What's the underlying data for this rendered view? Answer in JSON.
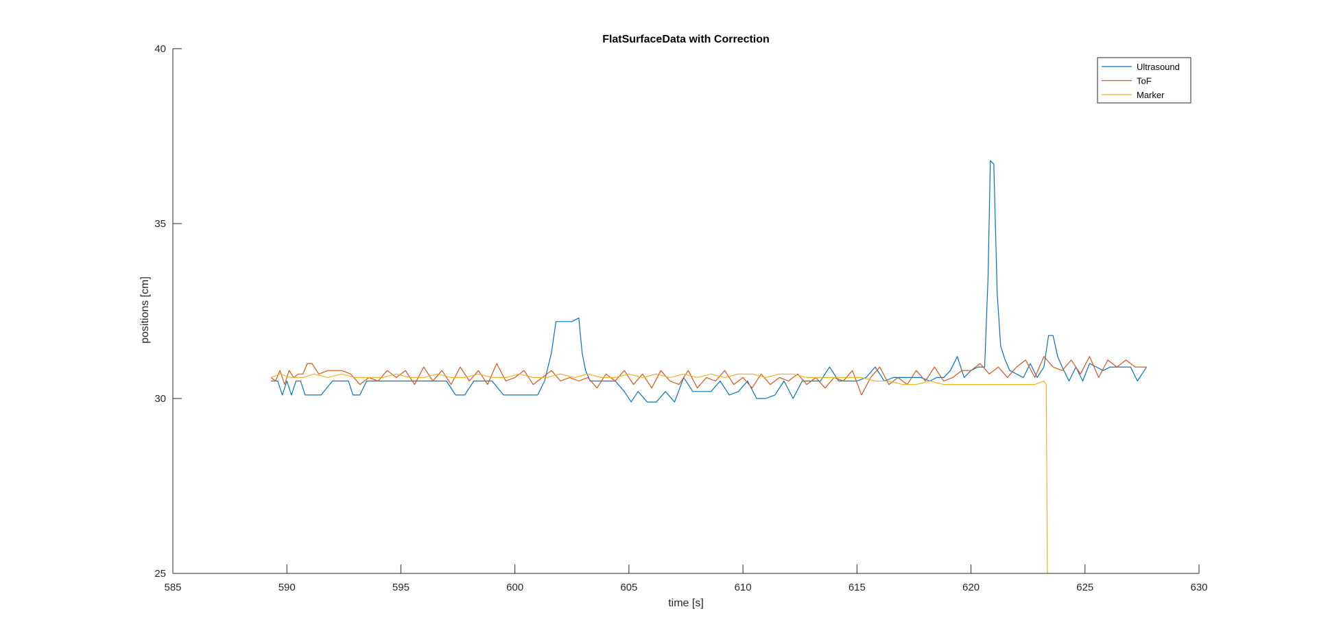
{
  "chart_data": {
    "type": "line",
    "title": "FlatSurfaceData with Correction",
    "xlabel": "time [s]",
    "ylabel": "positions [cm]",
    "xlim": [
      585,
      630
    ],
    "ylim": [
      25,
      40
    ],
    "xticks": [
      585,
      590,
      595,
      600,
      605,
      610,
      615,
      620,
      625,
      630
    ],
    "yticks": [
      25,
      30,
      35,
      40
    ],
    "grid": false,
    "legend_position": "top-right",
    "series": [
      {
        "name": "Ultrasound",
        "color": "#0072BD",
        "x": [
          589.3,
          589.6,
          589.8,
          590.0,
          590.2,
          590.4,
          590.6,
          590.8,
          591.0,
          591.5,
          592.0,
          592.4,
          592.7,
          592.9,
          593.2,
          593.5,
          593.8,
          594.2,
          594.6,
          595.0,
          595.5,
          596.0,
          596.5,
          597.0,
          597.4,
          597.8,
          598.2,
          598.6,
          599.0,
          599.5,
          600.0,
          600.5,
          601.0,
          601.3,
          601.6,
          601.8,
          601.9,
          602.0,
          602.2,
          602.5,
          602.8,
          602.95,
          603.1,
          603.3,
          603.6,
          604.0,
          604.4,
          604.8,
          605.1,
          605.4,
          605.8,
          606.2,
          606.6,
          607.0,
          607.4,
          607.8,
          608.2,
          608.6,
          609.0,
          609.4,
          609.8,
          610.2,
          610.6,
          611.0,
          611.4,
          611.8,
          612.2,
          612.6,
          613.0,
          613.4,
          613.8,
          614.2,
          614.6,
          615.0,
          615.4,
          615.8,
          616.2,
          616.6,
          617.0,
          617.4,
          617.8,
          618.2,
          618.5,
          618.8,
          619.1,
          619.4,
          619.7,
          620.0,
          620.3,
          620.6,
          620.75,
          620.85,
          621.0,
          621.15,
          621.3,
          621.5,
          621.7,
          622.0,
          622.3,
          622.6,
          622.9,
          623.2,
          623.4,
          623.6,
          623.8,
          624.0,
          624.3,
          624.6,
          624.9,
          625.2,
          625.5,
          625.8,
          626.1,
          626.4,
          626.7,
          627.0,
          627.3,
          627.7
        ],
        "y": [
          30.5,
          30.5,
          30.1,
          30.5,
          30.1,
          30.5,
          30.5,
          30.1,
          30.1,
          30.1,
          30.5,
          30.5,
          30.5,
          30.1,
          30.1,
          30.5,
          30.5,
          30.5,
          30.5,
          30.5,
          30.5,
          30.5,
          30.5,
          30.5,
          30.1,
          30.1,
          30.5,
          30.5,
          30.5,
          30.1,
          30.1,
          30.1,
          30.1,
          30.5,
          31.3,
          32.2,
          32.2,
          32.2,
          32.2,
          32.2,
          32.3,
          31.3,
          30.8,
          30.5,
          30.5,
          30.5,
          30.5,
          30.2,
          29.9,
          30.2,
          29.9,
          29.9,
          30.2,
          29.9,
          30.6,
          30.2,
          30.2,
          30.2,
          30.5,
          30.1,
          30.2,
          30.5,
          30.0,
          30.0,
          30.1,
          30.5,
          30.0,
          30.5,
          30.5,
          30.5,
          30.9,
          30.5,
          30.5,
          30.5,
          30.6,
          30.9,
          30.5,
          30.6,
          30.6,
          30.6,
          30.6,
          30.5,
          30.6,
          30.6,
          30.8,
          31.2,
          30.6,
          30.8,
          30.9,
          30.9,
          33.5,
          36.8,
          36.7,
          33.0,
          31.5,
          31.1,
          30.8,
          30.7,
          30.6,
          31.0,
          30.6,
          30.9,
          31.8,
          31.8,
          31.2,
          30.9,
          30.5,
          30.9,
          30.5,
          31.0,
          30.9,
          30.8,
          30.9,
          30.9,
          30.9,
          30.9,
          30.5,
          30.9
        ]
      },
      {
        "name": "ToF",
        "color": "#D95319",
        "x": [
          589.3,
          589.5,
          589.7,
          589.9,
          590.1,
          590.3,
          590.5,
          590.7,
          590.9,
          591.1,
          591.4,
          591.8,
          592.1,
          592.4,
          592.8,
          593.2,
          593.6,
          594.0,
          594.4,
          594.8,
          595.2,
          595.6,
          596.0,
          596.4,
          596.8,
          597.2,
          597.6,
          598.0,
          598.4,
          598.8,
          599.2,
          599.6,
          600.0,
          600.4,
          600.8,
          601.2,
          601.6,
          602.0,
          602.4,
          602.8,
          603.2,
          603.6,
          604.0,
          604.4,
          604.8,
          605.2,
          605.6,
          606.0,
          606.4,
          606.8,
          607.2,
          607.6,
          608.0,
          608.4,
          608.8,
          609.2,
          609.6,
          610.0,
          610.4,
          610.8,
          611.2,
          611.6,
          612.0,
          612.4,
          612.8,
          613.2,
          613.6,
          614.0,
          614.4,
          614.8,
          615.2,
          615.6,
          616.0,
          616.4,
          616.8,
          617.2,
          617.6,
          618.0,
          618.4,
          618.8,
          619.2,
          619.6,
          620.0,
          620.4,
          620.8,
          621.2,
          621.6,
          622.0,
          622.4,
          622.8,
          623.2,
          623.6,
          624.0,
          624.4,
          624.8,
          625.2,
          625.6,
          626.0,
          626.4,
          626.8,
          627.2,
          627.7
        ],
        "y": [
          30.6,
          30.5,
          30.8,
          30.4,
          30.8,
          30.6,
          30.7,
          30.7,
          31.0,
          31.0,
          30.7,
          30.8,
          30.8,
          30.8,
          30.7,
          30.4,
          30.6,
          30.5,
          30.8,
          30.6,
          30.8,
          30.4,
          30.9,
          30.5,
          30.8,
          30.4,
          30.9,
          30.5,
          30.8,
          30.4,
          31.0,
          30.5,
          30.6,
          30.8,
          30.4,
          30.6,
          30.8,
          30.5,
          30.6,
          30.5,
          30.6,
          30.3,
          30.7,
          30.5,
          30.8,
          30.4,
          30.7,
          30.3,
          30.8,
          30.5,
          30.4,
          30.8,
          30.3,
          30.6,
          30.5,
          30.8,
          30.4,
          30.6,
          30.3,
          30.7,
          30.4,
          30.6,
          30.5,
          30.7,
          30.4,
          30.6,
          30.3,
          30.6,
          30.5,
          30.8,
          30.1,
          30.6,
          30.9,
          30.4,
          30.6,
          30.4,
          30.8,
          30.5,
          30.9,
          30.5,
          30.6,
          30.8,
          30.8,
          31.0,
          30.7,
          30.9,
          30.6,
          30.9,
          31.1,
          30.6,
          31.2,
          30.9,
          30.8,
          31.1,
          30.7,
          31.2,
          30.6,
          31.1,
          30.9,
          31.1,
          30.9,
          30.9
        ]
      },
      {
        "name": "Marker",
        "color": "#EDB120",
        "x": [
          589.3,
          589.7,
          590.2,
          590.7,
          591.2,
          591.8,
          592.4,
          593.0,
          593.6,
          594.2,
          594.8,
          595.4,
          596.0,
          596.6,
          597.2,
          597.8,
          598.4,
          599.0,
          599.6,
          600.2,
          600.8,
          601.4,
          602.0,
          602.6,
          603.2,
          603.8,
          604.4,
          605.0,
          605.6,
          606.2,
          606.8,
          607.4,
          608.0,
          608.6,
          609.2,
          609.8,
          610.4,
          611.0,
          611.6,
          612.2,
          612.8,
          613.4,
          614.0,
          614.6,
          615.2,
          615.8,
          616.4,
          617.0,
          617.6,
          618.2,
          618.8,
          619.4,
          620.0,
          620.6,
          621.2,
          621.8,
          622.4,
          622.8,
          623.2,
          623.3,
          623.35
        ],
        "y": [
          30.6,
          30.7,
          30.6,
          30.6,
          30.7,
          30.6,
          30.7,
          30.6,
          30.6,
          30.6,
          30.7,
          30.6,
          30.6,
          30.7,
          30.6,
          30.6,
          30.7,
          30.6,
          30.6,
          30.7,
          30.6,
          30.6,
          30.7,
          30.6,
          30.7,
          30.6,
          30.6,
          30.7,
          30.6,
          30.7,
          30.6,
          30.7,
          30.6,
          30.7,
          30.6,
          30.7,
          30.7,
          30.6,
          30.7,
          30.7,
          30.6,
          30.6,
          30.6,
          30.6,
          30.6,
          30.5,
          30.5,
          30.4,
          30.4,
          30.5,
          30.4,
          30.4,
          30.4,
          30.4,
          30.4,
          30.4,
          30.4,
          30.4,
          30.5,
          30.4,
          25.0
        ]
      }
    ]
  }
}
